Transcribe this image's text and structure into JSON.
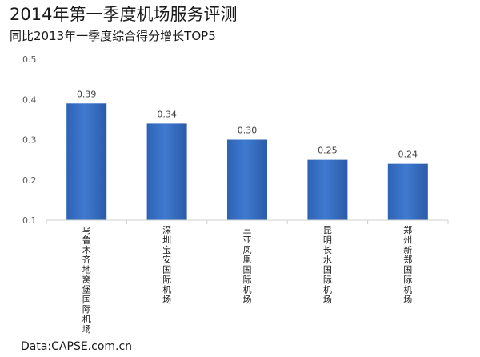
{
  "header": {
    "title": "2014年第一季度机场服务评测",
    "subtitle": "同比2013年一季度综合得分增长TOP5"
  },
  "source": "Data:CAPSE.com.cn",
  "chart_data": {
    "type": "bar",
    "title": "2014年第一季度机场服务评测",
    "subtitle": "同比2013年一季度综合得分增长TOP5",
    "categories": [
      "乌鲁木齐地窝堡国际机场",
      "深圳宝安国际机场",
      "三亚凤凰国际机场",
      "昆明长水国际机场",
      "郑州新郑国际机场"
    ],
    "values": [
      0.39,
      0.34,
      0.3,
      0.25,
      0.24
    ],
    "data_labels": [
      "0.39",
      "0.34",
      "0.30",
      "0.25",
      "0.24"
    ],
    "yticks": [
      "0.1",
      "0.2",
      "0.3",
      "0.4",
      "0.5"
    ],
    "ylim": [
      0.1,
      0.5
    ],
    "xlabel": "",
    "ylabel": "",
    "grid": false,
    "bar_color": "#3a70c0",
    "bar_color_dark": "#2b5ba8"
  }
}
